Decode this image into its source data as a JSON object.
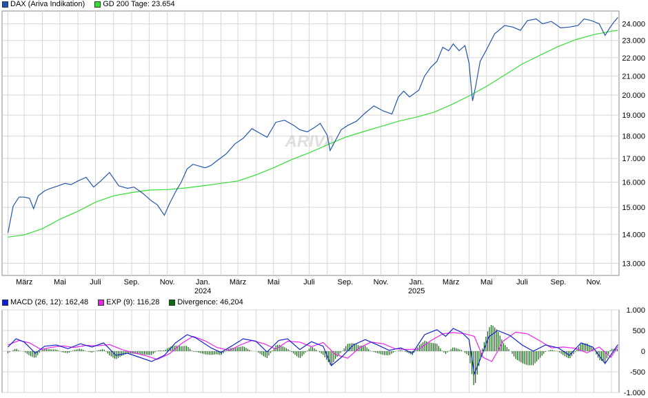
{
  "colors": {
    "dax": "#2255aa",
    "sma": "#33dd33",
    "macd": "#1122cc",
    "signal": "#ee22ee",
    "divergence": "#116611",
    "grid": "#d6d6d6",
    "frame": "#888888"
  },
  "watermark": "ARIVA",
  "chart_data": [
    {
      "type": "line",
      "legend": [
        {
          "name": "DAX (Ariva Indikation)",
          "color": "#2255aa"
        },
        {
          "name": "GD 200 Tage: 23.654",
          "color": "#33dd33"
        }
      ],
      "x_tick_labels": [
        "März",
        "Mai",
        "Juli",
        "Sep.",
        "Nov.",
        "Jan.",
        "März",
        "Mai",
        "Juli",
        "Sep.",
        "Nov.",
        "Jan.",
        "März",
        "Mai",
        "Juli",
        "Sep.",
        "Nov."
      ],
      "year_labels": [
        {
          "label": "2024",
          "at_month_tick": 5
        },
        {
          "label": "2025",
          "at_month_tick": 11
        }
      ],
      "y_tick_labels": [
        "13.000",
        "14.000",
        "15.000",
        "16.000",
        "17.000",
        "18.000",
        "19.000",
        "20.000",
        "21.000",
        "22.000",
        "23.000",
        "24.000"
      ],
      "y_ticks": [
        13000,
        14000,
        15000,
        16000,
        17000,
        18000,
        19000,
        20000,
        21000,
        22000,
        23000,
        24000
      ],
      "ylim": [
        12600,
        24800
      ],
      "y_scale": "log",
      "grid": true,
      "series": [
        {
          "name": "DAX (Ariva Indikation)",
          "x": [
            "2023-02-01",
            "2023-02-10",
            "2023-02-20",
            "2023-03-01",
            "2023-03-10",
            "2023-03-17",
            "2023-03-25",
            "2023-04-05",
            "2023-04-15",
            "2023-04-28",
            "2023-05-10",
            "2023-05-20",
            "2023-06-01",
            "2023-06-15",
            "2023-06-28",
            "2023-07-10",
            "2023-07-25",
            "2023-08-10",
            "2023-08-25",
            "2023-09-05",
            "2023-09-20",
            "2023-10-05",
            "2023-10-15",
            "2023-10-27",
            "2023-11-05",
            "2023-11-15",
            "2023-11-25",
            "2023-12-05",
            "2023-12-15",
            "2024-01-05",
            "2024-01-15",
            "2024-01-25",
            "2024-02-10",
            "2024-02-25",
            "2024-03-10",
            "2024-03-25",
            "2024-04-10",
            "2024-04-20",
            "2024-05-05",
            "2024-05-20",
            "2024-06-05",
            "2024-06-15",
            "2024-06-28",
            "2024-07-10",
            "2024-07-20",
            "2024-08-01",
            "2024-08-06",
            "2024-08-15",
            "2024-08-25",
            "2024-09-05",
            "2024-09-20",
            "2024-10-05",
            "2024-10-20",
            "2024-11-05",
            "2024-11-20",
            "2024-12-01",
            "2024-12-10",
            "2024-12-20",
            "2025-01-05",
            "2025-01-15",
            "2025-01-25",
            "2025-02-05",
            "2025-02-15",
            "2025-02-25",
            "2025-03-05",
            "2025-03-15",
            "2025-03-25",
            "2025-04-01",
            "2025-04-07",
            "2025-04-12",
            "2025-04-20",
            "2025-04-30",
            "2025-05-15",
            "2025-06-01",
            "2025-06-15",
            "2025-06-28",
            "2025-07-10",
            "2025-07-25",
            "2025-08-05",
            "2025-08-20",
            "2025-09-05",
            "2025-09-20",
            "2025-10-05",
            "2025-10-15",
            "2025-10-28",
            "2025-11-10",
            "2025-11-20",
            "2025-11-28",
            "2025-12-05",
            "2025-12-12"
          ],
          "y": [
            14050,
            15050,
            15400,
            15400,
            15350,
            14950,
            15450,
            15650,
            15750,
            15850,
            15950,
            15900,
            16050,
            16200,
            15800,
            16050,
            16400,
            15850,
            15750,
            15800,
            15550,
            15250,
            15100,
            14700,
            15150,
            15600,
            16000,
            16550,
            16750,
            16600,
            16700,
            16900,
            17200,
            17650,
            17900,
            18350,
            18100,
            17950,
            18650,
            18750,
            18500,
            18300,
            18200,
            18400,
            18600,
            18050,
            17350,
            17800,
            18300,
            18500,
            18700,
            19100,
            19450,
            19200,
            19050,
            19900,
            20200,
            19900,
            20250,
            21000,
            21450,
            21800,
            22600,
            22400,
            22800,
            22400,
            22700,
            21700,
            19700,
            20400,
            21800,
            22400,
            23400,
            23900,
            23800,
            23600,
            24200,
            24300,
            24000,
            24150,
            23750,
            23800,
            23900,
            24300,
            24200,
            24000,
            23300,
            23750,
            24100,
            24400
          ]
        },
        {
          "name": "GD 200 Tage",
          "x": [
            "2023-02-01",
            "2023-03-01",
            "2023-04-01",
            "2023-05-01",
            "2023-06-01",
            "2023-07-01",
            "2023-08-01",
            "2023-09-01",
            "2023-10-01",
            "2023-11-01",
            "2023-12-01",
            "2024-01-01",
            "2024-02-01",
            "2024-03-01",
            "2024-04-01",
            "2024-05-01",
            "2024-06-01",
            "2024-07-01",
            "2024-08-01",
            "2024-09-01",
            "2024-10-01",
            "2024-11-01",
            "2024-12-01",
            "2025-01-01",
            "2025-02-01",
            "2025-03-01",
            "2025-04-01",
            "2025-05-01",
            "2025-06-01",
            "2025-07-01",
            "2025-08-01",
            "2025-09-01",
            "2025-10-01",
            "2025-11-01",
            "2025-12-01",
            "2025-12-12"
          ],
          "y": [
            13900,
            13980,
            14200,
            14550,
            14850,
            15200,
            15450,
            15580,
            15680,
            15700,
            15760,
            15850,
            15950,
            16050,
            16300,
            16600,
            16950,
            17250,
            17600,
            17950,
            18200,
            18450,
            18700,
            18900,
            19150,
            19500,
            19950,
            20450,
            21050,
            21650,
            22150,
            22650,
            23050,
            23350,
            23550,
            23600
          ]
        }
      ]
    },
    {
      "type": "line",
      "legend": [
        {
          "name": "MACD (26, 12): 162,48",
          "color": "#1122cc"
        },
        {
          "name": "EXP (9): 116,28",
          "color": "#ee22ee"
        },
        {
          "name": "Divergence: 46,204",
          "color": "#116611"
        }
      ],
      "y_tick_labels": [
        "1.000",
        "500",
        "0",
        "-500",
        "-1.000"
      ],
      "y_ticks": [
        1000,
        500,
        0,
        -500,
        -1000
      ],
      "ylim": [
        -1000,
        1000
      ],
      "grid": true,
      "series": [
        {
          "name": "MACD (26, 12)",
          "x": [
            "2023-02-01",
            "2023-02-15",
            "2023-03-01",
            "2023-03-20",
            "2023-04-05",
            "2023-04-25",
            "2023-05-15",
            "2023-06-05",
            "2023-06-25",
            "2023-07-15",
            "2023-08-05",
            "2023-08-25",
            "2023-09-15",
            "2023-10-05",
            "2023-10-27",
            "2023-11-15",
            "2023-12-05",
            "2023-12-20",
            "2024-01-15",
            "2024-02-01",
            "2024-02-20",
            "2024-03-10",
            "2024-04-01",
            "2024-04-20",
            "2024-05-10",
            "2024-05-25",
            "2024-06-15",
            "2024-07-05",
            "2024-07-25",
            "2024-08-08",
            "2024-08-25",
            "2024-09-15",
            "2024-10-05",
            "2024-10-25",
            "2024-11-15",
            "2024-12-05",
            "2024-12-25",
            "2025-01-15",
            "2025-02-05",
            "2025-02-20",
            "2025-03-05",
            "2025-03-20",
            "2025-04-01",
            "2025-04-10",
            "2025-04-20",
            "2025-05-05",
            "2025-05-20",
            "2025-06-10",
            "2025-07-01",
            "2025-07-20",
            "2025-08-10",
            "2025-09-01",
            "2025-09-20",
            "2025-10-10",
            "2025-10-30",
            "2025-11-20",
            "2025-12-12"
          ],
          "y": [
            100,
            300,
            220,
            -50,
            120,
            150,
            60,
            180,
            100,
            200,
            -100,
            -50,
            -150,
            -250,
            -100,
            200,
            400,
            320,
            80,
            -30,
            130,
            300,
            240,
            -20,
            260,
            300,
            40,
            230,
            120,
            -350,
            -150,
            150,
            280,
            160,
            20,
            80,
            -50,
            400,
            520,
            360,
            550,
            450,
            280,
            -550,
            -200,
            350,
            500,
            380,
            150,
            0,
            150,
            80,
            -100,
            200,
            100,
            -300,
            160
          ]
        },
        {
          "name": "EXP (9)",
          "x": [
            "2023-02-01",
            "2023-02-20",
            "2023-03-10",
            "2023-03-30",
            "2023-04-15",
            "2023-05-05",
            "2023-05-25",
            "2023-06-15",
            "2023-07-05",
            "2023-07-25",
            "2023-08-15",
            "2023-09-05",
            "2023-09-25",
            "2023-10-15",
            "2023-11-05",
            "2023-11-25",
            "2023-12-15",
            "2024-01-05",
            "2024-01-25",
            "2024-02-15",
            "2024-03-05",
            "2024-03-25",
            "2024-04-15",
            "2024-05-05",
            "2024-05-25",
            "2024-06-15",
            "2024-07-05",
            "2024-07-25",
            "2024-08-15",
            "2024-09-05",
            "2024-09-25",
            "2024-10-15",
            "2024-11-05",
            "2024-11-25",
            "2024-12-15",
            "2025-01-05",
            "2025-01-25",
            "2025-02-15",
            "2025-03-05",
            "2025-03-25",
            "2025-04-10",
            "2025-04-25",
            "2025-05-10",
            "2025-05-30",
            "2025-06-20",
            "2025-07-10",
            "2025-07-30",
            "2025-08-20",
            "2025-09-10",
            "2025-09-30",
            "2025-10-20",
            "2025-11-10",
            "2025-11-30",
            "2025-12-12"
          ],
          "y": [
            150,
            260,
            200,
            40,
            90,
            130,
            90,
            140,
            130,
            160,
            40,
            -40,
            -110,
            -200,
            -60,
            180,
            360,
            250,
            90,
            20,
            150,
            260,
            180,
            50,
            240,
            220,
            110,
            210,
            -80,
            -170,
            80,
            220,
            180,
            60,
            40,
            50,
            250,
            420,
            450,
            420,
            360,
            -150,
            -250,
            250,
            460,
            420,
            260,
            80,
            100,
            70,
            -40,
            100,
            -150,
            110
          ]
        }
      ]
    }
  ]
}
